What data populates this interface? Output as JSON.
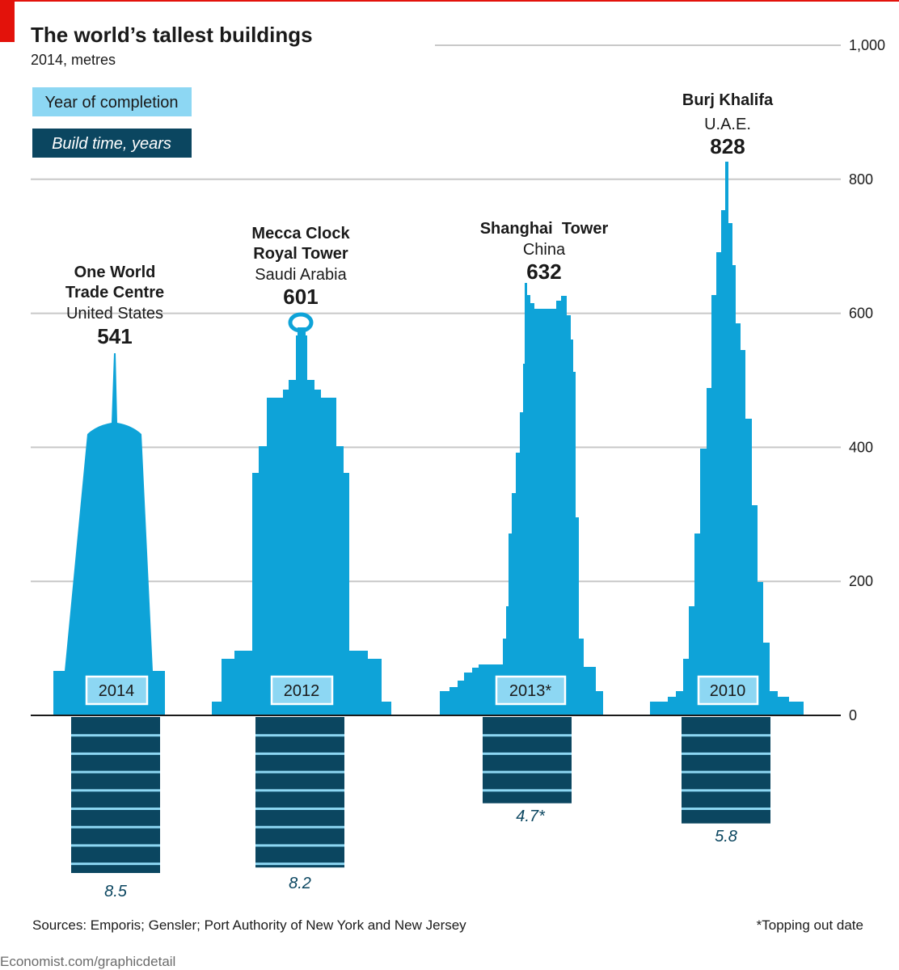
{
  "chart_data": {
    "type": "bar",
    "title": "The world’s tallest buildings",
    "subtitle": "2014, metres",
    "legend": {
      "year_label": "Year of completion",
      "build_label": "Build time, years"
    },
    "y_axis": {
      "ylim": [
        0,
        1000
      ],
      "ticks": [
        0,
        200,
        400,
        600,
        800,
        1000
      ],
      "tick_labels": [
        "0",
        "200",
        "400",
        "600",
        "800",
        "1,000"
      ],
      "position": "right"
    },
    "build_time_scale_max": 8.5,
    "buildings": [
      {
        "name_lines": [
          "One World",
          "Trade Centre"
        ],
        "country": "United States",
        "height": 541,
        "height_label": "541",
        "year": "2014",
        "build_time": 8.5,
        "build_time_label": "8.5"
      },
      {
        "name_lines": [
          "Mecca Clock",
          "Royal Tower"
        ],
        "country": "Saudi Arabia",
        "height": 601,
        "height_label": "601",
        "year": "2012",
        "build_time": 8.2,
        "build_time_label": "8.2"
      },
      {
        "name_lines": [
          "Shanghai  Tower"
        ],
        "country": "China",
        "height": 632,
        "height_label": "632",
        "year": "2013*",
        "build_time": 4.7,
        "build_time_label": "4.7*"
      },
      {
        "name_lines": [
          "Burj Khalifa"
        ],
        "country": "U.A.E.",
        "height": 828,
        "height_label": "828",
        "year": "2010",
        "build_time": 5.8,
        "build_time_label": "5.8"
      }
    ],
    "colors": {
      "building": "#0ea3d8",
      "year_box": "#8dd7f3",
      "build_time": "#0b4660",
      "grid": "#c8c8c8",
      "accent": "#e3120b"
    }
  },
  "footer": {
    "sources": "Sources: Emporis; Gensler; Port Authority of New York and New Jersey",
    "note": "*Topping out date",
    "credit": "Economist.com/graphicdetail"
  }
}
